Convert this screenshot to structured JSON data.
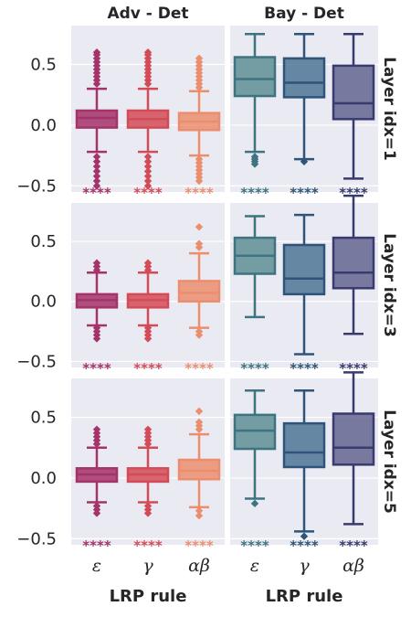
{
  "chart_data": {
    "type": "box",
    "column_titles": [
      "Adv - Det",
      "Bay - Det"
    ],
    "row_titles": [
      "Layer idx=1",
      "Layer idx=3",
      "Layer idx=5"
    ],
    "xlabel": "LRP rule",
    "categories": [
      "ε",
      "γ",
      "αβ"
    ],
    "yticks": [
      "0.5",
      "0.0",
      "−0.5"
    ],
    "ytick_values": [
      0.5,
      0.0,
      -0.5
    ],
    "ylim": [
      -0.55,
      0.82
    ],
    "significance_label": "****",
    "colors": {
      "adv": {
        "fill": [
          "#a5336a",
          "#d44b58",
          "#eb8e6e"
        ],
        "edge": [
          "#a5336a",
          "#d44b58",
          "#eb8e6e"
        ]
      },
      "bay": {
        "fill": [
          "#5e8e95",
          "#4f7595",
          "#636591"
        ],
        "edge": [
          "#3e7380",
          "#2e5479",
          "#393b70"
        ]
      }
    },
    "panels": [
      {
        "row": 0,
        "col": 0,
        "boxes": [
          {
            "whislo": -0.22,
            "q1": -0.02,
            "med": 0.06,
            "q3": 0.12,
            "whishi": 0.3,
            "fliers": [
              0.34,
              0.37,
              0.4,
              0.43,
              0.46,
              0.49,
              0.52,
              0.55,
              0.58,
              0.6,
              -0.26,
              -0.3,
              -0.34,
              -0.38,
              -0.42,
              -0.46,
              -0.5
            ]
          },
          {
            "whislo": -0.22,
            "q1": -0.02,
            "med": 0.05,
            "q3": 0.12,
            "whishi": 0.3,
            "fliers": [
              0.34,
              0.37,
              0.4,
              0.43,
              0.46,
              0.49,
              0.52,
              0.55,
              0.58,
              0.6,
              -0.26,
              -0.3,
              -0.34,
              -0.38,
              -0.42,
              -0.46,
              -0.5
            ]
          },
          {
            "whislo": -0.25,
            "q1": -0.04,
            "med": 0.03,
            "q3": 0.1,
            "whishi": 0.28,
            "fliers": [
              0.31,
              0.34,
              0.37,
              0.4,
              0.43,
              0.46,
              0.49,
              0.52,
              0.55,
              -0.28,
              -0.31,
              -0.34,
              -0.37,
              -0.4,
              -0.43,
              -0.46
            ]
          }
        ]
      },
      {
        "row": 0,
        "col": 1,
        "boxes": [
          {
            "whislo": -0.22,
            "q1": 0.24,
            "med": 0.38,
            "q3": 0.56,
            "whishi": 0.75,
            "fliers": [
              -0.26,
              -0.28,
              -0.3,
              -0.32
            ]
          },
          {
            "whislo": -0.28,
            "q1": 0.23,
            "med": 0.35,
            "q3": 0.55,
            "whishi": 0.75,
            "fliers": [
              -0.3
            ]
          },
          {
            "whislo": -0.44,
            "q1": 0.05,
            "med": 0.18,
            "q3": 0.49,
            "whishi": 0.75,
            "fliers": []
          }
        ]
      },
      {
        "row": 1,
        "col": 0,
        "boxes": [
          {
            "whislo": -0.2,
            "q1": -0.05,
            "med": 0.01,
            "q3": 0.06,
            "whishi": 0.24,
            "fliers": [
              0.26,
              0.29,
              0.32,
              -0.22,
              -0.25,
              -0.28,
              -0.31
            ]
          },
          {
            "whislo": -0.2,
            "q1": -0.05,
            "med": 0.01,
            "q3": 0.06,
            "whishi": 0.24,
            "fliers": [
              0.26,
              0.29,
              0.32,
              -0.22,
              -0.25,
              -0.28,
              -0.31
            ]
          },
          {
            "whislo": -0.22,
            "q1": 0.0,
            "med": 0.07,
            "q3": 0.17,
            "whishi": 0.4,
            "fliers": [
              0.45,
              0.48,
              0.62,
              -0.25,
              -0.28
            ]
          }
        ]
      },
      {
        "row": 1,
        "col": 1,
        "boxes": [
          {
            "whislo": -0.13,
            "q1": 0.23,
            "med": 0.38,
            "q3": 0.53,
            "whishi": 0.71,
            "fliers": []
          },
          {
            "whislo": -0.44,
            "q1": 0.06,
            "med": 0.19,
            "q3": 0.47,
            "whishi": 0.72,
            "fliers": []
          },
          {
            "whislo": -0.27,
            "q1": 0.11,
            "med": 0.24,
            "q3": 0.53,
            "whishi": 0.88,
            "fliers": []
          }
        ]
      },
      {
        "row": 2,
        "col": 0,
        "boxes": [
          {
            "whislo": -0.2,
            "q1": -0.03,
            "med": 0.03,
            "q3": 0.08,
            "whishi": 0.25,
            "fliers": [
              0.28,
              0.31,
              0.34,
              0.37,
              0.4,
              -0.23,
              -0.26,
              -0.29
            ]
          },
          {
            "whislo": -0.2,
            "q1": -0.03,
            "med": 0.03,
            "q3": 0.08,
            "whishi": 0.25,
            "fliers": [
              0.28,
              0.31,
              0.34,
              0.37,
              0.4,
              -0.23,
              -0.26,
              -0.29
            ]
          },
          {
            "whislo": -0.24,
            "q1": -0.01,
            "med": 0.06,
            "q3": 0.15,
            "whishi": 0.36,
            "fliers": [
              0.4,
              0.43,
              0.46,
              0.55,
              -0.27,
              -0.31
            ]
          }
        ]
      },
      {
        "row": 2,
        "col": 1,
        "boxes": [
          {
            "whislo": -0.17,
            "q1": 0.24,
            "med": 0.39,
            "q3": 0.52,
            "whishi": 0.72,
            "fliers": [
              -0.21
            ]
          },
          {
            "whislo": -0.44,
            "q1": 0.09,
            "med": 0.21,
            "q3": 0.45,
            "whishi": 0.72,
            "fliers": [
              -0.48
            ]
          },
          {
            "whislo": -0.38,
            "q1": 0.11,
            "med": 0.25,
            "q3": 0.53,
            "whishi": 0.87,
            "fliers": []
          }
        ]
      }
    ]
  }
}
